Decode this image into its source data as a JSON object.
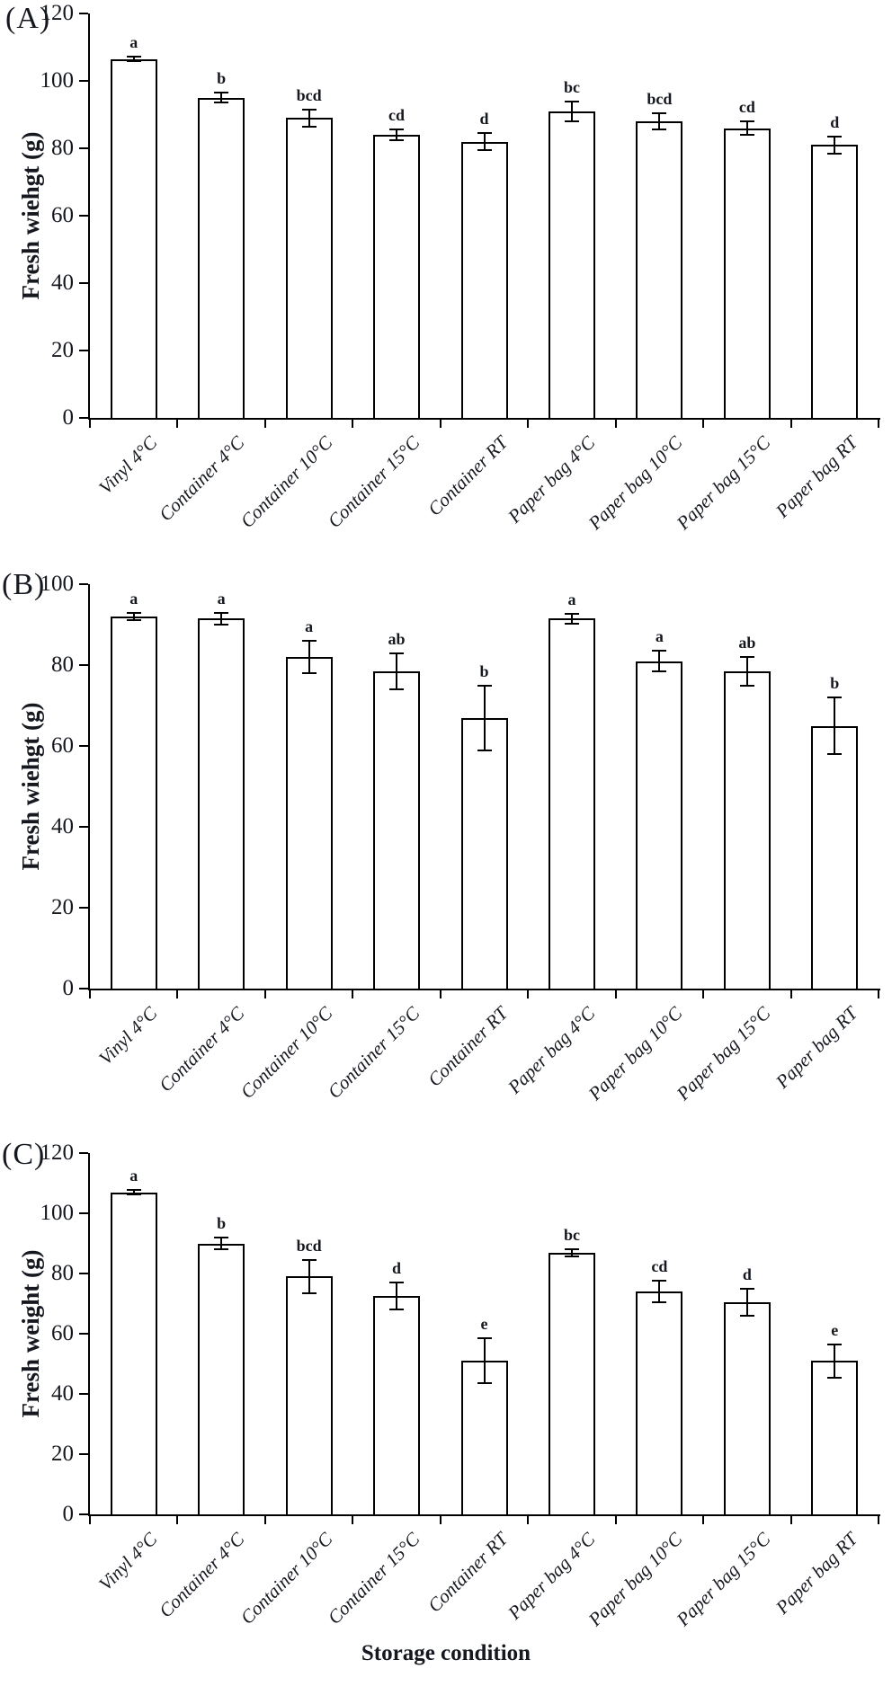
{
  "chart_data": [
    {
      "type": "bar",
      "panel_letter": "(A)",
      "ylabel": "Fresh wiehgt (g)",
      "xlabel": "",
      "ylim": [
        0,
        120
      ],
      "ytick_interval": 20,
      "grid": false,
      "legend": "none",
      "bar_fill": "#ffffff",
      "bar_border": "#000000",
      "categories": [
        "Vinyl 4°C",
        "Container 4°C",
        "Container 10°C",
        "Container 15°C",
        "Container RT",
        "Paper bag 4°C",
        "Paper bag 10°C",
        "Paper bag 15°C",
        "Paper bag RT"
      ],
      "values": [
        106.5,
        95,
        89,
        84,
        82,
        91,
        88,
        86,
        81
      ],
      "errors": [
        0.7,
        1.5,
        2.5,
        1.5,
        2.5,
        3,
        2.5,
        2,
        2.5
      ],
      "sig_letters": [
        "a",
        "b",
        "bcd",
        "cd",
        "d",
        "bc",
        "bcd",
        "cd",
        "d"
      ]
    },
    {
      "type": "bar",
      "panel_letter": "(B)",
      "ylabel": "Fresh wiehgt (g)",
      "xlabel": "",
      "ylim": [
        0,
        100
      ],
      "ytick_interval": 20,
      "grid": false,
      "legend": "none",
      "bar_fill": "#ffffff",
      "bar_border": "#000000",
      "categories": [
        "Vinyl 4°C",
        "Container 4°C",
        "Container 10°C",
        "Container 15°C",
        "Container RT",
        "Paper bag 4°C",
        "Paper bag 10°C",
        "Paper bag 15°C",
        "Paper bag RT"
      ],
      "values": [
        92,
        91.5,
        82,
        78.5,
        67,
        91.5,
        81,
        78.5,
        65
      ],
      "errors": [
        0.8,
        1.5,
        4,
        4.5,
        8,
        1.2,
        2.5,
        3.5,
        7
      ],
      "sig_letters": [
        "a",
        "a",
        "a",
        "ab",
        "b",
        "a",
        "a",
        "ab",
        "b"
      ]
    },
    {
      "type": "bar",
      "panel_letter": "(C)",
      "ylabel": "Fresh weight (g)",
      "xlabel": "Storage condition",
      "ylim": [
        0,
        120
      ],
      "ytick_interval": 20,
      "grid": false,
      "legend": "none",
      "bar_fill": "#ffffff",
      "bar_border": "#000000",
      "categories": [
        "Vinyl 4°C",
        "Container 4°C",
        "Container 10°C",
        "Container 15°C",
        "Container RT",
        "Paper bag 4°C",
        "Paper bag 10°C",
        "Paper bag 15°C",
        "Paper bag RT"
      ],
      "values": [
        107,
        90,
        79,
        72.5,
        51,
        87,
        74,
        70.5,
        51
      ],
      "errors": [
        0.8,
        2,
        5.5,
        4.5,
        7.5,
        1.2,
        3.5,
        4.5,
        5.5
      ],
      "sig_letters": [
        "a",
        "b",
        "bcd",
        "d",
        "e",
        "bc",
        "cd",
        "d",
        "e"
      ]
    }
  ],
  "colors": {
    "ink": "#15181f",
    "bar_fill": "#ffffff",
    "bar_border": "#000000"
  }
}
